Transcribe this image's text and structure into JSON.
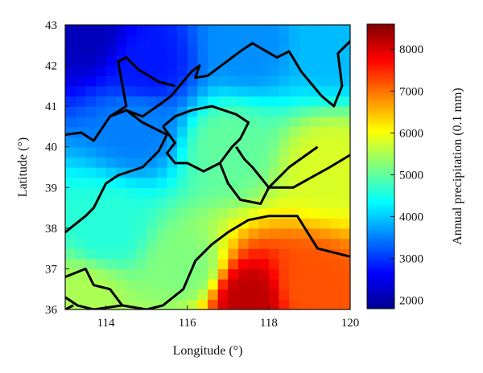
{
  "chart_data": {
    "type": "heatmap",
    "title": "",
    "xlabel": "Longitude (°)",
    "ylabel": "Latitude (°)",
    "colorbar_label": "Annual precipitation (0.1 mm)",
    "xlim": [
      113,
      120
    ],
    "ylim": [
      36,
      43
    ],
    "x_ticks": [
      114,
      116,
      118,
      120
    ],
    "x_tick_labels": [
      "114",
      "116",
      "118",
      "120"
    ],
    "y_ticks": [
      36,
      37,
      38,
      39,
      40,
      41,
      42,
      43
    ],
    "y_tick_labels": [
      "36",
      "37",
      "38",
      "39",
      "40",
      "41",
      "42",
      "43"
    ],
    "colorbar_range": [
      1800,
      8600
    ],
    "colorbar_ticks": [
      2000,
      3000,
      4000,
      5000,
      6000,
      7000,
      8000
    ],
    "colorbar_tick_labels": [
      "2000",
      "3000",
      "4000",
      "5000",
      "6000",
      "7000",
      "8000"
    ],
    "colormap": "jet",
    "grid": false,
    "grid_step_deg": 0.25,
    "field_description_points": [
      {
        "lon": 113.5,
        "lat": 42.8,
        "value": 2200
      },
      {
        "lon": 115.0,
        "lat": 42.0,
        "value": 2800
      },
      {
        "lon": 117.5,
        "lat": 42.5,
        "value": 3600
      },
      {
        "lon": 119.5,
        "lat": 42.5,
        "value": 3900
      },
      {
        "lon": 114.8,
        "lat": 40.5,
        "value": 3500
      },
      {
        "lon": 117.0,
        "lat": 40.0,
        "value": 5000
      },
      {
        "lon": 119.5,
        "lat": 39.5,
        "value": 5800
      },
      {
        "lon": 114.0,
        "lat": 38.0,
        "value": 4600
      },
      {
        "lon": 116.0,
        "lat": 37.0,
        "value": 5200
      },
      {
        "lon": 117.5,
        "lat": 36.3,
        "value": 8200
      },
      {
        "lon": 119.0,
        "lat": 36.6,
        "value": 7200
      },
      {
        "lon": 113.5,
        "lat": 36.3,
        "value": 5500
      }
    ],
    "boundaries": {
      "province_lines": [
        [
          [
            113,
            40.3
          ],
          [
            113.4,
            40.35
          ],
          [
            113.7,
            40.15
          ],
          [
            114.1,
            40.75
          ],
          [
            114.5,
            40.9
          ],
          [
            114.9,
            40.75
          ],
          [
            115.4,
            41.1
          ],
          [
            115.6,
            41.25
          ],
          [
            116.1,
            41.85
          ],
          [
            116.3,
            42.0
          ],
          [
            116.2,
            41.7
          ],
          [
            116.5,
            41.75
          ],
          [
            117.3,
            42.35
          ],
          [
            117.6,
            42.55
          ],
          [
            118.2,
            42.2
          ],
          [
            118.5,
            42.35
          ],
          [
            118.8,
            41.85
          ],
          [
            119.3,
            41.25
          ],
          [
            119.6,
            41.0
          ],
          [
            119.8,
            41.5
          ],
          [
            119.7,
            42.3
          ],
          [
            120,
            42.6
          ]
        ],
        [
          [
            114.1,
            40.75
          ],
          [
            114.5,
            41.0
          ],
          [
            114.4,
            41.55
          ],
          [
            114.3,
            42.1
          ],
          [
            114.5,
            42.2
          ],
          [
            114.8,
            41.9
          ],
          [
            115.3,
            41.6
          ],
          [
            115.7,
            41.5
          ]
        ],
        [
          [
            115.4,
            40.5
          ],
          [
            115.7,
            40.75
          ],
          [
            116.1,
            40.9
          ],
          [
            116.6,
            41.0
          ],
          [
            117.2,
            40.8
          ],
          [
            117.5,
            40.6
          ],
          [
            117.3,
            40.2
          ],
          [
            117.1,
            40.0
          ],
          [
            116.8,
            39.6
          ],
          [
            116.4,
            39.4
          ],
          [
            116.0,
            39.6
          ],
          [
            115.7,
            39.6
          ],
          [
            115.5,
            39.85
          ],
          [
            115.7,
            40.1
          ],
          [
            115.4,
            40.5
          ]
        ],
        [
          [
            116.8,
            39.6
          ],
          [
            117.0,
            39.1
          ],
          [
            117.3,
            38.7
          ],
          [
            117.8,
            38.6
          ],
          [
            118.0,
            39.0
          ],
          [
            117.6,
            39.5
          ],
          [
            117.4,
            39.7
          ],
          [
            117.2,
            40.0
          ]
        ],
        [
          [
            119.2,
            40.0
          ],
          [
            118.5,
            39.5
          ],
          [
            118.0,
            39.0
          ],
          [
            118.6,
            39.0
          ],
          [
            119.5,
            39.5
          ],
          [
            120,
            39.8
          ]
        ],
        [
          [
            113,
            37.9
          ],
          [
            113.5,
            38.3
          ],
          [
            113.7,
            38.5
          ],
          [
            114.0,
            39.1
          ],
          [
            114.3,
            39.3
          ],
          [
            114.9,
            39.5
          ],
          [
            115.3,
            39.9
          ],
          [
            115.5,
            40.3
          ],
          [
            114.9,
            40.6
          ],
          [
            114.5,
            40.9
          ]
        ],
        [
          [
            113,
            36.8
          ],
          [
            113.5,
            37.0
          ],
          [
            113.7,
            36.6
          ],
          [
            114.1,
            36.5
          ],
          [
            114.4,
            36.1
          ],
          [
            113.7,
            36.0
          ],
          [
            113.3,
            36.1
          ],
          [
            113,
            36.3
          ]
        ],
        [
          [
            114.4,
            36.1
          ],
          [
            115.0,
            36.0
          ],
          [
            115.4,
            36.1
          ],
          [
            115.9,
            36.5
          ],
          [
            116.2,
            37.2
          ],
          [
            116.6,
            37.6
          ],
          [
            117.0,
            37.9
          ],
          [
            117.5,
            38.2
          ],
          [
            118.0,
            38.3
          ],
          [
            118.7,
            38.3
          ],
          [
            119.2,
            37.5
          ],
          [
            119.6,
            37.4
          ],
          [
            120,
            37.3
          ]
        ],
        [
          [
            113,
            36.0
          ],
          [
            113.2,
            36.1
          ]
        ]
      ]
    }
  }
}
